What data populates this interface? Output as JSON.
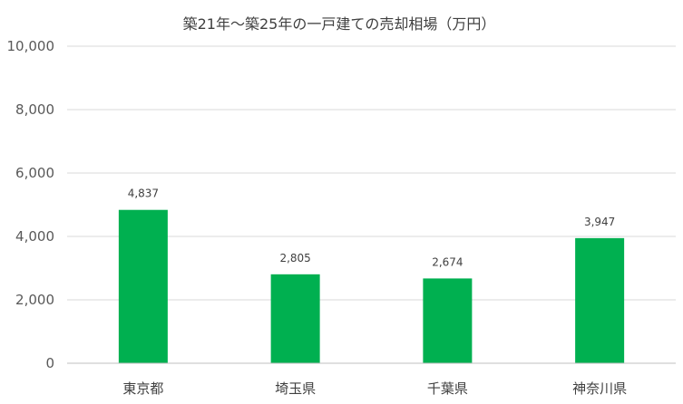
{
  "chart_data": {
    "type": "bar",
    "title": "築21年～築25年の一戸建ての売却相場（万円）",
    "categories": [
      "東京都",
      "埼玉県",
      "千葉県",
      "神奈川県"
    ],
    "values": [
      4837,
      2805,
      2674,
      3947
    ],
    "data_labels": [
      "4,837",
      "2,805",
      "2,674",
      "3,947"
    ],
    "ytick_labels": [
      "0",
      "2,000",
      "4,000",
      "6,000",
      "8,000",
      "10,000"
    ],
    "ytick_values": [
      0,
      2000,
      4000,
      6000,
      8000,
      10000
    ],
    "ylim": [
      0,
      10000
    ],
    "xlabel": "",
    "ylabel": "",
    "grid": true,
    "legend": "none",
    "bar_color": "#00b050"
  }
}
